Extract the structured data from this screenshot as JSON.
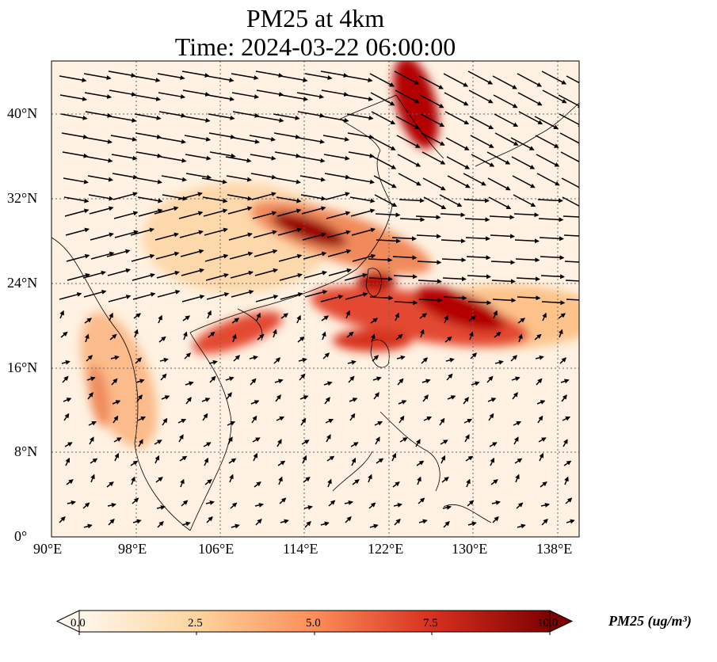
{
  "title_line1": "PM25 at 4km",
  "title_line2": "Time: 2024-03-22 06:00:00",
  "y_ticks": [
    "0°",
    "8°N",
    "16°N",
    "24°N",
    "32°N",
    "40°N"
  ],
  "x_ticks": [
    "90°E",
    "98°E",
    "106°E",
    "114°E",
    "122°E",
    "130°E",
    "138°E"
  ],
  "colorbar": {
    "label": "PM25 (ug/m³)",
    "ticks": [
      "0.0",
      "2.5",
      "5.0",
      "7.5",
      "10.0"
    ],
    "colormap": "OrRd",
    "range": [
      0,
      10
    ],
    "extend": "both"
  },
  "chart_data": {
    "type": "heatmap",
    "variable": "PM25",
    "units": "ug/m^3",
    "level": "4km",
    "time": "2024-03-22 06:00:00",
    "lon_range": [
      90,
      140
    ],
    "lat_range": [
      0,
      44
    ],
    "gridlines": true,
    "plumes": [
      {
        "lon": [
          111,
          126
        ],
        "lat": [
          25.5,
          30.5
        ],
        "peak": 10
      },
      {
        "lon": [
          116,
          134
        ],
        "lat": [
          17,
          23.5
        ],
        "peak": 10
      },
      {
        "lon": [
          120,
          126
        ],
        "lat": [
          23,
          25.5
        ],
        "peak": 9
      },
      {
        "lon": [
          122,
          128
        ],
        "lat": [
          36,
          44
        ],
        "peak": 10
      },
      {
        "lon": [
          104,
          113
        ],
        "lat": [
          17,
          21
        ],
        "peak": 8
      },
      {
        "lon": [
          93,
          100
        ],
        "lat": [
          8,
          17
        ],
        "peak": 5
      }
    ],
    "wind_vectors": "westerly flow north of 18°N, weak flow to the south"
  }
}
